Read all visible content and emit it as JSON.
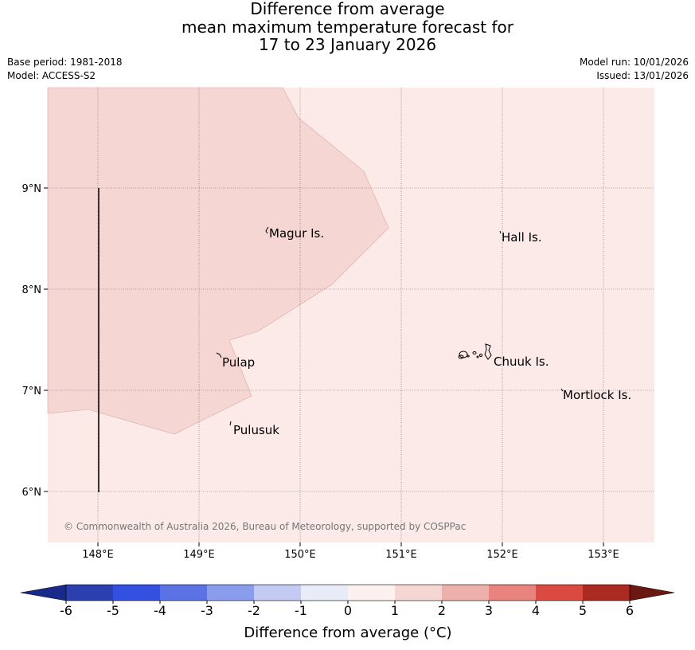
{
  "title": {
    "line1": "Difference from average",
    "line2": "mean maximum temperature forecast for",
    "line3": "17 to 23 January 2026"
  },
  "meta": {
    "base_period": "Base period: 1981-2018",
    "model": "Model: ACCESS-S2",
    "model_run": "Model run: 10/01/2026",
    "issued": "Issued: 13/01/2026"
  },
  "map": {
    "background_color": "#fbeae8",
    "anomaly_region_color": "#f5d6d3",
    "lon_labels": [
      "148°E",
      "149°E",
      "150°E",
      "151°E",
      "152°E",
      "153°E"
    ],
    "lat_labels": [
      "9°N",
      "8°N",
      "7°N",
      "6°N"
    ],
    "places": {
      "magur": "Magur Is.",
      "hall": "Hall Is.",
      "pulap": "Pulap",
      "chuuk": "Chuuk Is.",
      "mortlock": "Mortlock Is.",
      "pulusuk": "Pulusuk"
    },
    "copyright": "© Commonwealth of Australia 2026, Bureau of Meteorology, supported by COSPPac"
  },
  "colorbar": {
    "tick_labels": [
      "-6",
      "-5",
      "-4",
      "-3",
      "-2",
      "-1",
      "0",
      "1",
      "2",
      "3",
      "4",
      "5",
      "6"
    ],
    "colors": {
      "under": "#1a2a8a",
      "b1": "#2b3fae",
      "b2": "#3350e0",
      "b3": "#5a72e4",
      "b4": "#8a9cec",
      "b5": "#c3caf4",
      "b6": "#e8ebf8",
      "b7": "#fdf1f0",
      "b8": "#f5d6d3",
      "b9": "#eeb0ab",
      "b10": "#e8837d",
      "b11": "#db4a40",
      "b12": "#ab2a22",
      "over": "#6b1712"
    },
    "label": "Difference from average (°C)"
  }
}
